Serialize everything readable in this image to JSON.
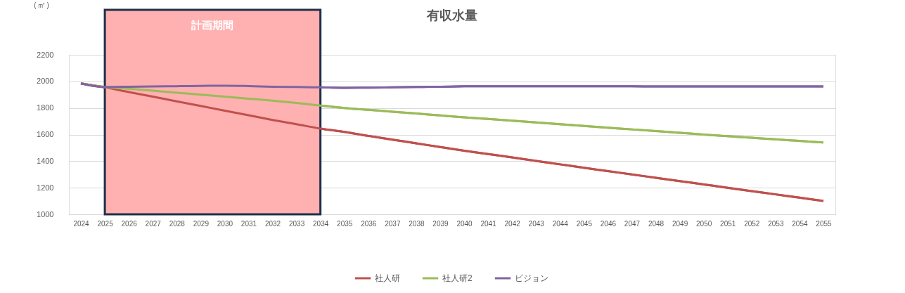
{
  "chart_data": {
    "type": "line",
    "title": "有収水量",
    "ylabel": "（㎥）",
    "categories": [
      "2024",
      "2025",
      "2026",
      "2027",
      "2028",
      "2029",
      "2030",
      "2031",
      "2032",
      "2033",
      "2034",
      "2035",
      "2036",
      "2037",
      "2038",
      "2039",
      "2040",
      "2041",
      "2042",
      "2043",
      "2044",
      "2045",
      "2046",
      "2047",
      "2048",
      "2049",
      "2050",
      "2051",
      "2052",
      "2053",
      "2054",
      "2055"
    ],
    "series": [
      {
        "name": "社人研",
        "color": "#c0504d",
        "values": [
          1985,
          1955,
          1920,
          1885,
          1850,
          1815,
          1780,
          1745,
          1710,
          1678,
          1645,
          1620,
          1590,
          1562,
          1534,
          1506,
          1478,
          1453,
          1428,
          1402,
          1376,
          1350,
          1325,
          1300,
          1275,
          1250,
          1225,
          1200,
          1175,
          1150,
          1125,
          1100
        ]
      },
      {
        "name": "社人研2",
        "color": "#9bbb59",
        "values": [
          1985,
          1958,
          1945,
          1930,
          1915,
          1900,
          1885,
          1870,
          1855,
          1838,
          1818,
          1800,
          1786,
          1772,
          1758,
          1744,
          1730,
          1717,
          1704,
          1691,
          1678,
          1665,
          1652,
          1639,
          1626,
          1613,
          1600,
          1588,
          1576,
          1564,
          1552,
          1540
        ]
      },
      {
        "name": "ビジョン",
        "color": "#8064a2",
        "values": [
          1985,
          1958,
          1960,
          1962,
          1964,
          1966,
          1968,
          1965,
          1960,
          1958,
          1955,
          1952,
          1953,
          1955,
          1958,
          1960,
          1963,
          1964,
          1964,
          1964,
          1964,
          1964,
          1963,
          1963,
          1962,
          1962,
          1962,
          1962,
          1962,
          1962,
          1962,
          1962
        ]
      }
    ],
    "ylim": [
      1000,
      2200
    ],
    "yticks": [
      1000,
      1200,
      1400,
      1600,
      1800,
      2000,
      2200
    ],
    "grid": "y",
    "legend": "bottom",
    "bands": [
      {
        "axis": "x",
        "from": "2025",
        "to": "2034",
        "label": "計画期間",
        "color": "#ffb0b0"
      }
    ]
  }
}
